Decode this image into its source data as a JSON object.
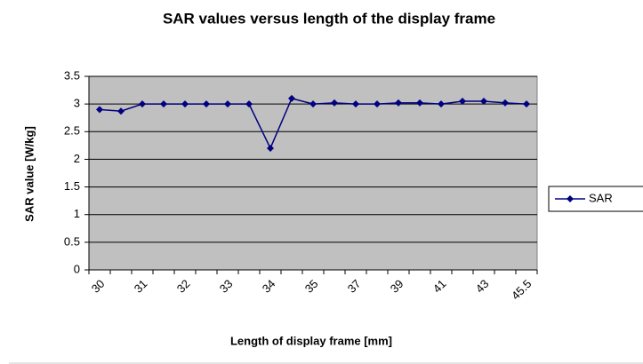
{
  "chart_data": {
    "type": "line",
    "title": "SAR values versus length of the display frame",
    "x_label": "Length of display frame [mm]",
    "y_label": "SAR value [W/kg]",
    "categories": [
      "30",
      null,
      "31",
      null,
      "32",
      null,
      "33",
      null,
      "34",
      null,
      "35",
      null,
      "37",
      null,
      "39",
      null,
      "41",
      null,
      "43",
      null,
      "45.5"
    ],
    "series": [
      {
        "name": "SAR",
        "color": "#000080",
        "values": [
          2.9,
          2.87,
          3.0,
          3.0,
          3.0,
          3.0,
          3.0,
          3.0,
          2.2,
          3.1,
          3.0,
          3.02,
          3.0,
          3.0,
          3.02,
          3.02,
          3.0,
          3.05,
          3.05,
          3.02,
          3.0
        ]
      }
    ],
    "ylim": [
      0,
      3.5
    ],
    "yticks": [
      0,
      0.5,
      1,
      1.5,
      2,
      2.5,
      3,
      3.5
    ],
    "grid": true,
    "legend": "right"
  }
}
